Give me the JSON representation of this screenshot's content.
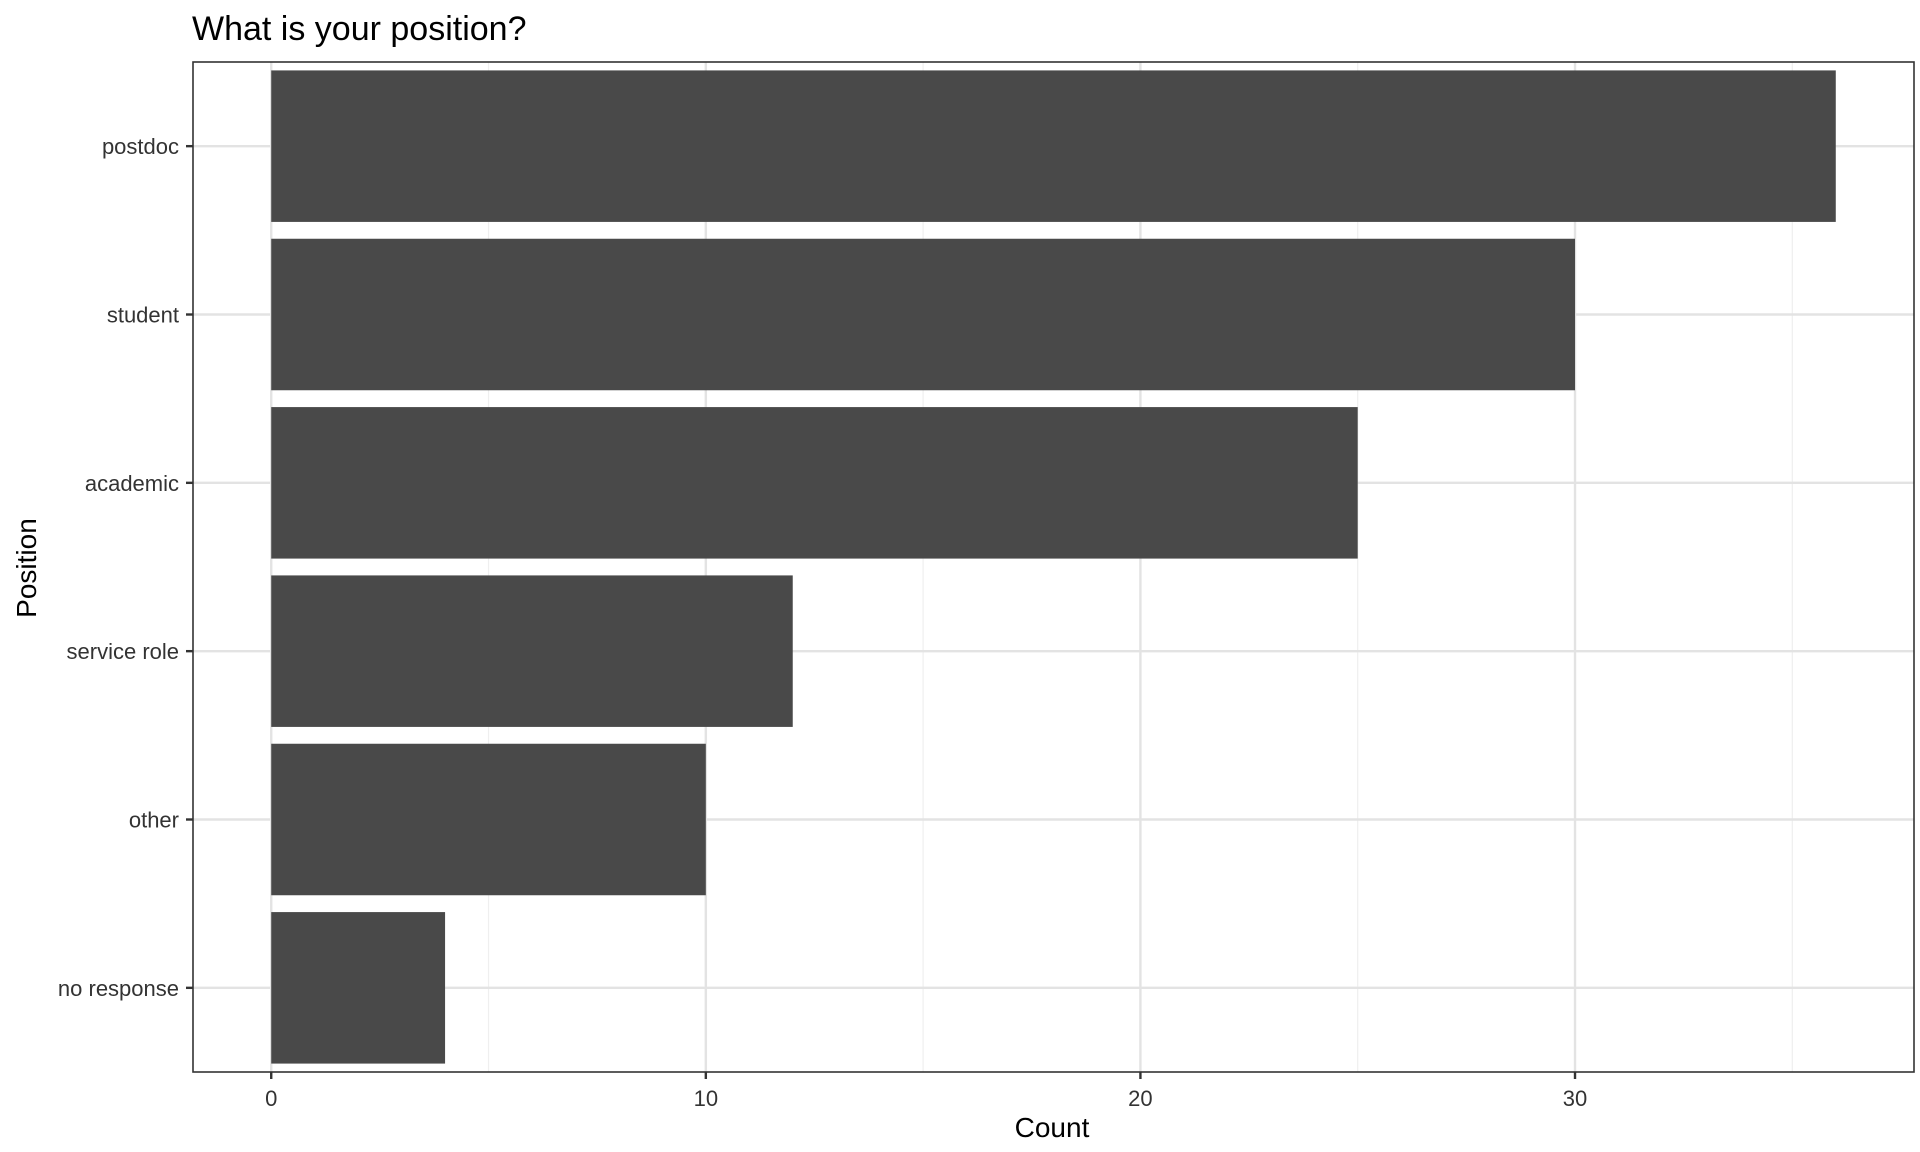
{
  "chart_data": {
    "type": "bar",
    "orientation": "horizontal",
    "title": "What is your position?",
    "xlabel": "Count",
    "ylabel": "Position",
    "categories": [
      "postdoc",
      "student",
      "academic",
      "service role",
      "other",
      "no response"
    ],
    "values": [
      36,
      30,
      25,
      12,
      10,
      4
    ],
    "xlim": [
      -1.8,
      37.8
    ],
    "xticks": [
      0,
      10,
      20,
      30
    ],
    "xticks_minor": [
      5,
      15,
      25,
      35
    ],
    "grid": true,
    "legend": "none",
    "colors": {
      "bar": "#494949",
      "grid": "#e3e3e3",
      "background": "#ffffff"
    }
  }
}
